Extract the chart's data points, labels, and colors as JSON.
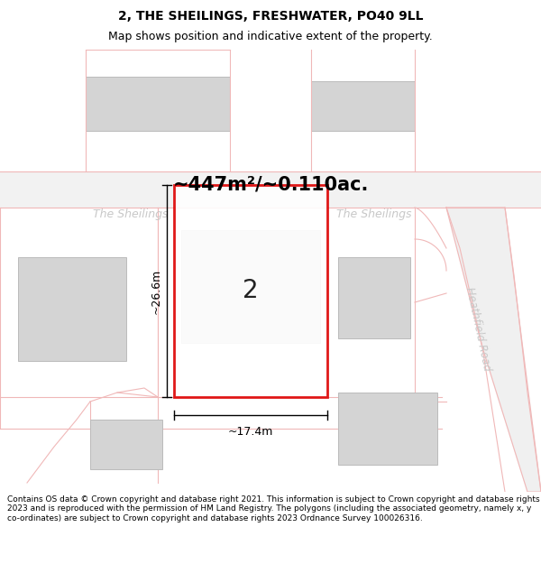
{
  "title": "2, THE SHEILINGS, FRESHWATER, PO40 9LL",
  "subtitle": "Map shows position and indicative extent of the property.",
  "area_label": "~447m²/~0.110ac.",
  "width_label": "~17.4m",
  "height_label": "~26.6m",
  "property_number": "2",
  "road_label_left": "The Sheilings",
  "road_label_right": "The Sheilings",
  "road_label_right2": "Heathfield Road",
  "footer_text": "Contains OS data © Crown copyright and database right 2021. This information is subject to Crown copyright and database rights 2023 and is reproduced with the permission of HM Land Registry. The polygons (including the associated geometry, namely x, y co-ordinates) are subject to Crown copyright and database rights 2023 Ordnance Survey 100026316.",
  "bg_color": "#ffffff",
  "map_bg": "#f8f8f8",
  "road_color": "#f0b8b8",
  "property_outline_color": "#dd0000",
  "building_fill": "#d4d4d4",
  "building_outline": "#bbbbbb",
  "dim_color": "#000000",
  "road_text_color": "#c8c8c8",
  "title_color": "#000000",
  "footer_color": "#000000",
  "title_fontsize": 10,
  "subtitle_fontsize": 9,
  "area_fontsize": 15,
  "footer_fontsize": 6.5
}
